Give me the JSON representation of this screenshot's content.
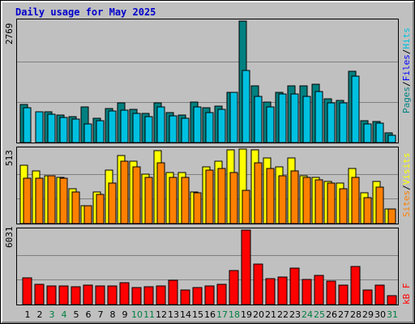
{
  "title": "Daily usage for May 2025",
  "colors": {
    "hits": "#00c0e0",
    "files": "#0000ff",
    "pages": "#008080",
    "visits": "#ffff00",
    "sites": "#ff8000",
    "kbytes": "#ff0000",
    "weekday_label": "#000000",
    "weekend_label": "#008040"
  },
  "hits_panel": {
    "max_label": "2769",
    "legend": {
      "pages": "Pages",
      "files": "Files",
      "hits": "Hits",
      "sep": "/"
    }
  },
  "sites_panel": {
    "max_label": "513",
    "legend": {
      "sites": "Sites",
      "visits": "Visits",
      "sep": "/"
    }
  },
  "kb_panel": {
    "max_label": "6031",
    "legend": {
      "kbytes": "kB F"
    }
  },
  "chart_data": [
    {
      "type": "bar",
      "title": "Daily usage for May 2025",
      "categories": [
        "1",
        "2",
        "3",
        "4",
        "5",
        "6",
        "7",
        "8",
        "9",
        "10",
        "11",
        "12",
        "13",
        "14",
        "15",
        "16",
        "17",
        "18",
        "19",
        "20",
        "21",
        "22",
        "23",
        "24",
        "25",
        "26",
        "27",
        "28",
        "29",
        "30",
        "31"
      ],
      "weekend_days": [
        "3",
        "4",
        "10",
        "11",
        "17",
        "18",
        "24",
        "25",
        "31"
      ],
      "ylim": [
        0,
        2769
      ],
      "series": [
        {
          "name": "Pages",
          "values": [
            860,
            0,
            700,
            620,
            590,
            820,
            550,
            780,
            900,
            750,
            660,
            900,
            680,
            630,
            920,
            800,
            830,
            1150,
            2769,
            1300,
            930,
            1140,
            1300,
            1290,
            1320,
            1000,
            960,
            1620,
            500,
            480,
            220
          ]
        },
        {
          "name": "Hits",
          "values": [
            800,
            710,
            650,
            580,
            530,
            430,
            490,
            720,
            740,
            660,
            590,
            820,
            600,
            560,
            820,
            690,
            750,
            1150,
            1650,
            1060,
            820,
            1100,
            1100,
            1060,
            1160,
            910,
            900,
            1520,
            420,
            450,
            170
          ]
        }
      ]
    },
    {
      "type": "bar",
      "categories": [
        "1",
        "2",
        "3",
        "4",
        "5",
        "6",
        "7",
        "8",
        "9",
        "10",
        "11",
        "12",
        "13",
        "14",
        "15",
        "16",
        "17",
        "18",
        "19",
        "20",
        "21",
        "22",
        "23",
        "24",
        "25",
        "26",
        "27",
        "28",
        "29",
        "30",
        "31"
      ],
      "ylim": [
        0,
        513
      ],
      "series": [
        {
          "name": "Visits",
          "values": [
            400,
            360,
            330,
            320,
            240,
            120,
            220,
            370,
            470,
            430,
            340,
            500,
            350,
            350,
            220,
            390,
            430,
            510,
            513,
            510,
            450,
            390,
            450,
            330,
            320,
            290,
            280,
            380,
            210,
            290,
            100
          ]
        },
        {
          "name": "Sites",
          "values": [
            310,
            310,
            330,
            310,
            220,
            120,
            200,
            280,
            430,
            390,
            320,
            420,
            320,
            320,
            210,
            370,
            380,
            350,
            230,
            420,
            380,
            330,
            360,
            320,
            300,
            280,
            240,
            320,
            180,
            250,
            100
          ]
        }
      ]
    },
    {
      "type": "bar",
      "categories": [
        "1",
        "2",
        "3",
        "4",
        "5",
        "6",
        "7",
        "8",
        "9",
        "10",
        "11",
        "12",
        "13",
        "14",
        "15",
        "16",
        "17",
        "18",
        "19",
        "20",
        "21",
        "22",
        "23",
        "24",
        "25",
        "26",
        "27",
        "28",
        "29",
        "30",
        "31"
      ],
      "ylim": [
        0,
        6031
      ],
      "series": [
        {
          "name": "kB F",
          "values": [
            2170,
            1650,
            1520,
            1530,
            1450,
            1580,
            1530,
            1540,
            1800,
            1380,
            1450,
            1540,
            1940,
            1150,
            1400,
            1480,
            1630,
            2730,
            6031,
            3270,
            2110,
            2260,
            2980,
            2010,
            2330,
            1930,
            1570,
            3050,
            1170,
            1560,
            720
          ]
        }
      ]
    }
  ]
}
